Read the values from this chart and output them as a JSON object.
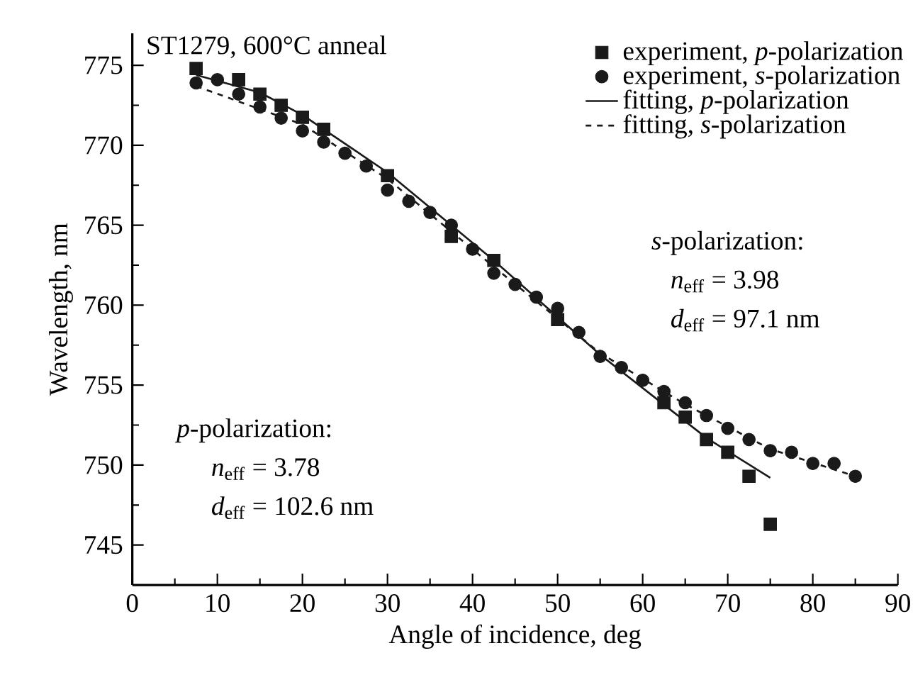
{
  "chart_data": {
    "type": "scatter",
    "xlabel": "Angle of incidence, deg",
    "ylabel": "Wavelength, nm",
    "xlim": [
      0,
      90
    ],
    "ylim": [
      742.5,
      777
    ],
    "xticks": [
      0,
      10,
      20,
      30,
      40,
      50,
      60,
      70,
      80,
      90
    ],
    "yticks": [
      745,
      750,
      755,
      760,
      765,
      770,
      775
    ],
    "grid": false,
    "legend": "top right",
    "annotations": [
      "ST1279, 600°C anneal",
      "*s*-polarization:",
      "*n*$_{eff}$ = 3.98",
      "*d*$_{eff}$ = 97.1 nm",
      "*p*-polarization:",
      "*n*$_{eff}$ = 3.78",
      "*d*$_{eff}$ = 102.6 nm"
    ],
    "series": [
      {
        "name": "experiment, *p*-polarization",
        "marker": "square",
        "color": "#1a1a1a",
        "x": [
          7.5,
          12.5,
          15,
          17.5,
          20,
          22.5,
          30,
          37.5,
          42.5,
          50,
          62.5,
          65,
          67.5,
          70,
          72.5,
          75
        ],
        "values": [
          774.8,
          774.1,
          773.2,
          772.5,
          771.75,
          771.0,
          768.1,
          764.3,
          762.8,
          759.1,
          753.9,
          753.0,
          751.6,
          750.8,
          749.3,
          746.3
        ]
      },
      {
        "name": "experiment, *s*-polarization",
        "marker": "circle",
        "color": "#1a1a1a",
        "x": [
          7.5,
          10,
          12.5,
          15,
          17.5,
          20,
          22.5,
          25,
          27.5,
          30,
          32.5,
          35,
          37.5,
          40,
          42.5,
          45,
          47.5,
          50,
          52.5,
          55,
          57.5,
          60,
          62.5,
          65,
          67.5,
          70,
          72.5,
          75,
          77.5,
          80,
          82.5,
          85
        ],
        "values": [
          773.9,
          774.1,
          773.2,
          772.4,
          771.7,
          770.9,
          770.2,
          769.5,
          768.7,
          767.2,
          766.5,
          765.8,
          765.0,
          763.5,
          762.0,
          761.3,
          760.5,
          759.8,
          758.3,
          756.8,
          756.1,
          755.3,
          754.6,
          753.9,
          753.1,
          752.3,
          751.6,
          750.9,
          750.8,
          750.1,
          750.1,
          749.3
        ]
      },
      {
        "name": "fitting, *p*-polarization",
        "type": "line",
        "line_style": "solid",
        "marker": "none",
        "color": "#1a1a1a",
        "x": [
          7.5,
          15,
          20,
          30,
          42.5,
          55,
          67.5,
          75
        ],
        "values": [
          774.4,
          773.3,
          771.9,
          768.3,
          762.8,
          756.9,
          751.7,
          749.2
        ]
      },
      {
        "name": "fitting, *s*-polarization",
        "type": "line",
        "line_style": "dashed",
        "marker": "none",
        "color": "#1a1a1a",
        "x": [
          7.5,
          20,
          30,
          42.5,
          55,
          65,
          75,
          85
        ],
        "values": [
          773.7,
          771.3,
          767.9,
          762.4,
          757.0,
          753.8,
          751.0,
          749.3
        ]
      }
    ]
  }
}
